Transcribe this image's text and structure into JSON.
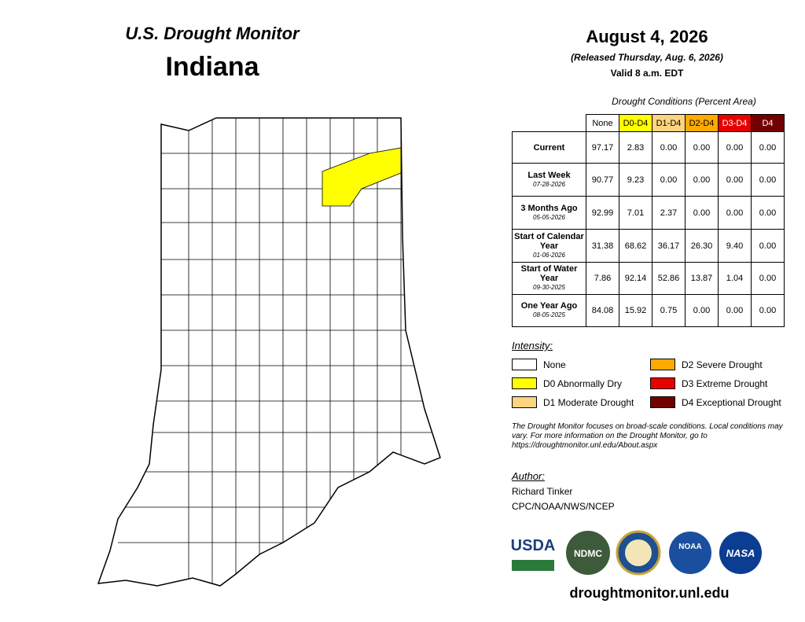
{
  "header": {
    "title": "U.S. Drought Monitor",
    "state": "Indiana"
  },
  "date": {
    "date": "August 4, 2026",
    "released": "(Released Thursday, Aug. 6, 2026)",
    "valid": "Valid 8 a.m. EDT"
  },
  "table": {
    "caption": "Drought Conditions (Percent Area)",
    "columns": [
      {
        "label": "None",
        "color": "#ffffff",
        "text": "#000000"
      },
      {
        "label": "D0-D4",
        "color": "#ffff00",
        "text": "#000000"
      },
      {
        "label": "D1-D4",
        "color": "#fcd37f",
        "text": "#000000"
      },
      {
        "label": "D2-D4",
        "color": "#ffaa00",
        "text": "#000000"
      },
      {
        "label": "D3-D4",
        "color": "#e60000",
        "text": "#ffffff"
      },
      {
        "label": "D4",
        "color": "#730000",
        "text": "#ffffff"
      }
    ],
    "rows": [
      {
        "label": "Current",
        "values": [
          "97.17",
          "2.83",
          "0.00",
          "0.00",
          "0.00",
          "0.00"
        ]
      },
      {
        "label": "Last Week",
        "date": "07-28-2026",
        "values": [
          "90.77",
          "9.23",
          "0.00",
          "0.00",
          "0.00",
          "0.00"
        ]
      },
      {
        "label": "3 Months Ago",
        "date": "05-05-2026",
        "values": [
          "92.99",
          "7.01",
          "2.37",
          "0.00",
          "0.00",
          "0.00"
        ]
      },
      {
        "label": "Start of Calendar Year",
        "date": "01-06-2026",
        "values": [
          "31.38",
          "68.62",
          "36.17",
          "26.30",
          "9.40",
          "0.00"
        ]
      },
      {
        "label": "Start of Water Year",
        "date": "09-30-2025",
        "values": [
          "7.86",
          "92.14",
          "52.86",
          "13.87",
          "1.04",
          "0.00"
        ]
      },
      {
        "label": "One Year Ago",
        "date": "08-05-2025",
        "values": [
          "84.08",
          "15.92",
          "0.75",
          "0.00",
          "0.00",
          "0.00"
        ]
      }
    ]
  },
  "legend": {
    "title": "Intensity:",
    "items": [
      {
        "label": "None",
        "color": "#ffffff"
      },
      {
        "label": "D0 Abnormally Dry",
        "color": "#ffff00"
      },
      {
        "label": "D1 Moderate Drought",
        "color": "#fcd37f"
      },
      {
        "label": "D2 Severe Drought",
        "color": "#ffaa00"
      },
      {
        "label": "D3 Extreme Drought",
        "color": "#e60000"
      },
      {
        "label": "D4 Exceptional Drought",
        "color": "#730000"
      }
    ]
  },
  "note": "The Drought Monitor focuses on broad-scale conditions. Local conditions may vary. For more information on the Drought Monitor, go to https://droughtmonitor.unl.edu/About.aspx",
  "author": {
    "title": "Author:",
    "name": "Richard Tinker",
    "org": "CPC/NOAA/NWS/NCEP"
  },
  "logos": [
    "USDA",
    "NDMC",
    "NOAA",
    "NASA"
  ],
  "footer": "droughtmonitor.unl.edu"
}
